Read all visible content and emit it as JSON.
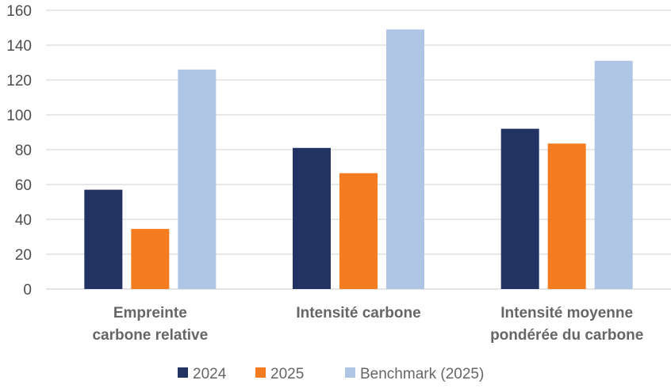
{
  "chart_data": {
    "type": "bar",
    "categories": [
      [
        "Empreinte",
        "carbone relative"
      ],
      [
        "Intensité carbone"
      ],
      [
        "Intensité moyenne",
        "pondérée du carbone"
      ]
    ],
    "series": [
      {
        "name": "2024",
        "color": "#213263",
        "values": [
          57,
          81,
          92
        ]
      },
      {
        "name": "2025",
        "color": "#f47b20",
        "values": [
          34.5,
          66.5,
          83.5
        ]
      },
      {
        "name": "Benchmark (2025)",
        "color": "#aec5e6",
        "values": [
          126,
          149,
          131
        ]
      }
    ],
    "ylim": [
      0,
      160
    ],
    "yticks": [
      0,
      20,
      40,
      60,
      80,
      100,
      120,
      140,
      160
    ],
    "grid": true,
    "gridColor": "#d9d9d9",
    "legendPosition": "bottom",
    "title": "",
    "xlabel": "",
    "ylabel": ""
  }
}
